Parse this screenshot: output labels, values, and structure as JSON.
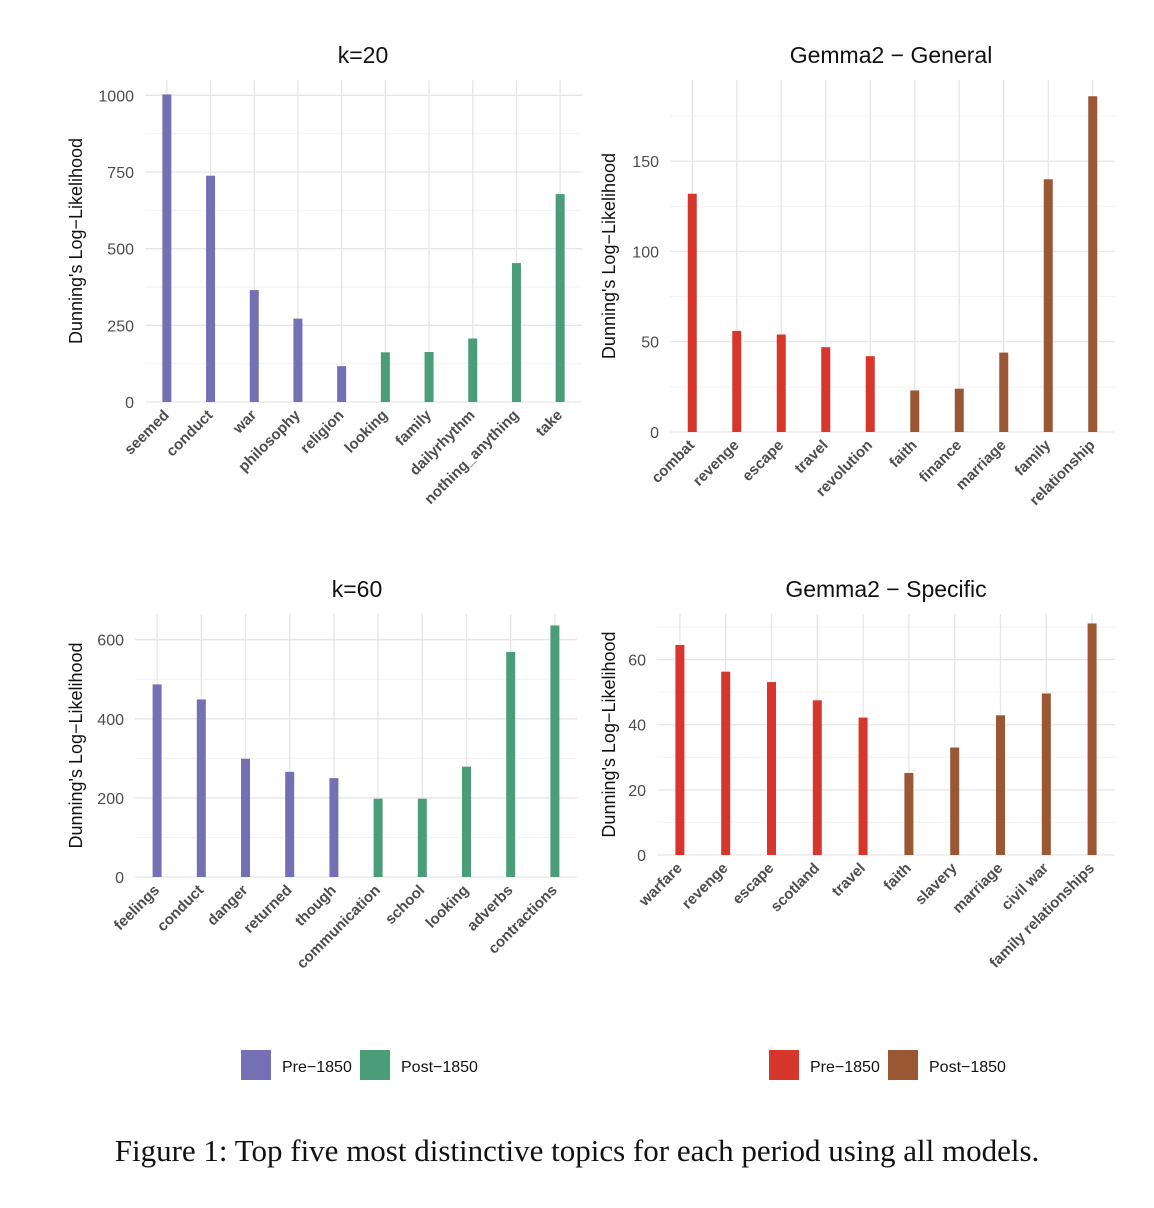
{
  "caption": "Figure 1: Top five most distinctive topics for each period using all models.",
  "legends": [
    {
      "items": [
        {
          "label": "Pre−1850",
          "color": "#7570b3"
        },
        {
          "label": "Post−1850",
          "color": "#4a9d78"
        }
      ]
    },
    {
      "items": [
        {
          "label": "Pre−1850",
          "color": "#d7362c"
        },
        {
          "label": "Post−1850",
          "color": "#995733"
        }
      ]
    }
  ],
  "chart_data": [
    {
      "type": "bar",
      "title": "k=20",
      "ylabel": "Dunning's Log−Likelihood",
      "xlabel": "",
      "ylim": [
        0,
        1050
      ],
      "yticks": [
        0,
        250,
        500,
        750,
        1000
      ],
      "grid": true,
      "categories": [
        "seemed",
        "conduct",
        "war",
        "philosophy",
        "religion",
        "looking",
        "family",
        "dailyrhythm",
        "nothing_anything",
        "take"
      ],
      "values": [
        1003,
        738,
        365,
        272,
        117,
        162,
        163,
        207,
        453,
        678
      ],
      "period": [
        "Pre−1850",
        "Pre−1850",
        "Pre−1850",
        "Pre−1850",
        "Pre−1850",
        "Post−1850",
        "Post−1850",
        "Post−1850",
        "Post−1850",
        "Post−1850"
      ]
    },
    {
      "type": "bar",
      "title": "Gemma2 − General",
      "ylabel": "Dunning's Log−Likelihood",
      "xlabel": "",
      "ylim": [
        0,
        195
      ],
      "yticks": [
        0,
        50,
        100,
        150
      ],
      "grid": true,
      "categories": [
        "combat",
        "revenge",
        "escape",
        "travel",
        "revolution",
        "faith",
        "finance",
        "marriage",
        "family",
        "relationship"
      ],
      "values": [
        132,
        56,
        54,
        47,
        42,
        23,
        24,
        44,
        140,
        186
      ],
      "period": [
        "Pre−1850",
        "Pre−1850",
        "Pre−1850",
        "Pre−1850",
        "Pre−1850",
        "Post−1850",
        "Post−1850",
        "Post−1850",
        "Post−1850",
        "Post−1850"
      ]
    },
    {
      "type": "bar",
      "title": "k=60",
      "ylabel": "Dunning's Log−Likelihood",
      "xlabel": "",
      "ylim": [
        0,
        665
      ],
      "yticks": [
        0,
        200,
        400,
        600
      ],
      "grid": true,
      "categories": [
        "feelings",
        "conduct",
        "danger",
        "returned",
        "though",
        "communication",
        "school",
        "looking",
        "adverbs",
        "contractions"
      ],
      "values": [
        487,
        449,
        299,
        266,
        250,
        198,
        198,
        279,
        569,
        636
      ],
      "period": [
        "Pre−1850",
        "Pre−1850",
        "Pre−1850",
        "Pre−1850",
        "Pre−1850",
        "Post−1850",
        "Post−1850",
        "Post−1850",
        "Post−1850",
        "Post−1850"
      ]
    },
    {
      "type": "bar",
      "title": "Gemma2 − Specific",
      "ylabel": "Dunning's Log−Likelihood",
      "xlabel": "",
      "ylim": [
        0,
        74
      ],
      "yticks": [
        0,
        20,
        40,
        60
      ],
      "grid": true,
      "categories": [
        "warfare",
        "revenge",
        "escape",
        "scotland",
        "travel",
        "faith",
        "slavery",
        "marriage",
        "civil war",
        "family relationships"
      ],
      "values": [
        64.5,
        56.3,
        53.1,
        47.5,
        42.2,
        25.2,
        33.0,
        42.9,
        49.6,
        71.1
      ],
      "period": [
        "Pre−1850",
        "Pre−1850",
        "Pre−1850",
        "Pre−1850",
        "Pre−1850",
        "Post−1850",
        "Post−1850",
        "Post−1850",
        "Post−1850",
        "Post−1850"
      ]
    }
  ]
}
